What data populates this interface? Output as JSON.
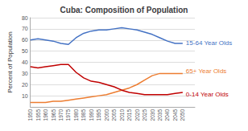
{
  "chart_data": {
    "type": "line",
    "title": "Cuba: Composition of Population",
    "y_label": "Percent of Population",
    "x": [
      1950,
      1955,
      1960,
      1965,
      1970,
      1975,
      1980,
      1985,
      1990,
      1995,
      2000,
      2005,
      2010,
      2015,
      2020,
      2025,
      2030,
      2035,
      2040,
      2045,
      2050
    ],
    "series": [
      {
        "name": "15-64 Year Olds",
        "color": "#4472C4",
        "values": [
          60,
          61,
          60,
          59,
          57,
          56,
          62,
          66,
          68,
          69,
          69,
          70,
          71,
          70,
          69,
          67,
          65,
          62,
          59,
          57,
          57
        ]
      },
      {
        "name": "65+ Year Olds",
        "color": "#ED7D31",
        "values": [
          4,
          4,
          4,
          5,
          5,
          6,
          7,
          8,
          9,
          10,
          11,
          13,
          15,
          17,
          20,
          24,
          28,
          30,
          30,
          30,
          30
        ]
      },
      {
        "name": "0-14 Year Olds",
        "color": "#C00000",
        "values": [
          36,
          35,
          36,
          37,
          38,
          38,
          31,
          26,
          23,
          22,
          20,
          18,
          15,
          13,
          12,
          11,
          11,
          11,
          11,
          12,
          13
        ]
      }
    ],
    "xlim": [
      1950,
      2058
    ],
    "xticks": [
      1950,
      1955,
      1960,
      1965,
      1970,
      1975,
      1980,
      1985,
      1990,
      1995,
      2000,
      2005,
      2010,
      2015,
      2020,
      2025,
      2030,
      2035,
      2040,
      2045,
      2050
    ],
    "ylim": [
      0,
      80
    ],
    "yticks": [
      10,
      20,
      30,
      40,
      50,
      60,
      70,
      80
    ],
    "grid": true
  }
}
